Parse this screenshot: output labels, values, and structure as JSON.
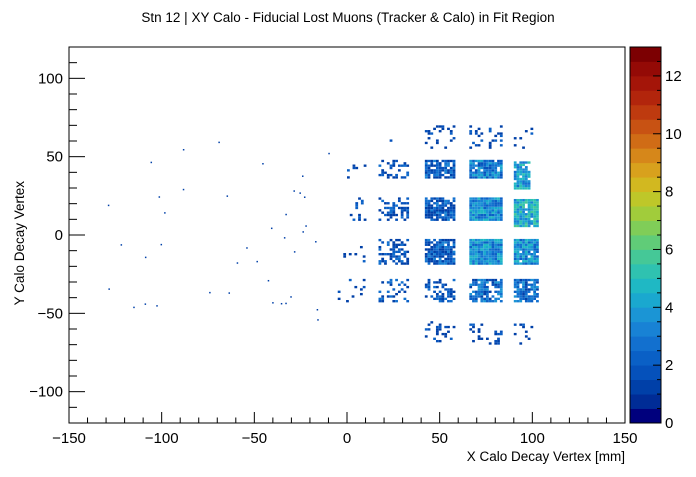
{
  "chart_data": {
    "type": "heatmap",
    "title": "Stn 12 | XY Calo - Fiducial Lost Muons (Tracker & Calo) in Fit Region",
    "xlabel": "X Calo Decay Vertex [mm]",
    "ylabel": "Y Calo Decay Vertex",
    "xlim": [
      -150,
      150
    ],
    "ylim": [
      -120,
      120
    ],
    "xticks": [
      -150,
      -100,
      -50,
      0,
      50,
      100,
      150
    ],
    "yticks": [
      -100,
      -50,
      0,
      50,
      100
    ],
    "colorbar": {
      "zlim": [
        0,
        13
      ],
      "ticks": [
        0,
        2,
        4,
        6,
        8,
        10,
        12
      ],
      "palette": [
        "#00007d",
        "#002c96",
        "#0040a8",
        "#0551bb",
        "#0a60c6",
        "#1270cf",
        "#1882d5",
        "#1b95d5",
        "#1aa8cf",
        "#1fb8c4",
        "#2fc2b0",
        "#45c897",
        "#60cc78",
        "#80cd58",
        "#a1cc3b",
        "#bec729",
        "#d2b820",
        "#d8a11d",
        "#d6871a",
        "#d06c16",
        "#c85213",
        "#be3a0f",
        "#b2250c",
        "#a41509",
        "#940a06",
        "#7c0002"
      ]
    },
    "cells": [
      {
        "x": [
          17,
          33
        ],
        "y": [
          36,
          48
        ],
        "density": 0.35,
        "level": 1.5
      },
      {
        "x": [
          42,
          58
        ],
        "y": [
          36,
          48
        ],
        "density": 0.8,
        "level": 2.0
      },
      {
        "x": [
          66,
          83
        ],
        "y": [
          36,
          48
        ],
        "density": 0.95,
        "level": 3.0
      },
      {
        "x": [
          90,
          98
        ],
        "y": [
          29,
          47
        ],
        "density": 0.9,
        "level": 4.0
      },
      {
        "x": [
          17,
          33
        ],
        "y": [
          9,
          23
        ],
        "density": 0.45,
        "level": 1.5
      },
      {
        "x": [
          42,
          58
        ],
        "y": [
          9,
          23
        ],
        "density": 0.85,
        "level": 2.0
      },
      {
        "x": [
          66,
          83
        ],
        "y": [
          9,
          23
        ],
        "density": 1.0,
        "level": 3.5
      },
      {
        "x": [
          90,
          103
        ],
        "y": [
          5,
          23
        ],
        "density": 0.95,
        "level": 4.5
      },
      {
        "x": [
          17,
          33
        ],
        "y": [
          -19,
          -3
        ],
        "density": 0.4,
        "level": 1.5
      },
      {
        "x": [
          42,
          58
        ],
        "y": [
          -19,
          -3
        ],
        "density": 0.85,
        "level": 2.0
      },
      {
        "x": [
          66,
          83
        ],
        "y": [
          -19,
          -3
        ],
        "density": 1.0,
        "level": 3.5
      },
      {
        "x": [
          90,
          103
        ],
        "y": [
          -19,
          -3
        ],
        "density": 0.95,
        "level": 3.5
      },
      {
        "x": [
          17,
          33
        ],
        "y": [
          -43,
          -29
        ],
        "density": 0.25,
        "level": 1.5
      },
      {
        "x": [
          42,
          58
        ],
        "y": [
          -43,
          -29
        ],
        "density": 0.45,
        "level": 1.5
      },
      {
        "x": [
          66,
          83
        ],
        "y": [
          -43,
          -29
        ],
        "density": 0.8,
        "level": 2.5
      },
      {
        "x": [
          90,
          103
        ],
        "y": [
          -43,
          -29
        ],
        "density": 0.75,
        "level": 2.5
      },
      {
        "x": [
          0,
          10
        ],
        "y": [
          36,
          48
        ],
        "density": 0.1,
        "level": 1.0
      },
      {
        "x": [
          0,
          10
        ],
        "y": [
          9,
          23
        ],
        "density": 0.1,
        "level": 1.0
      },
      {
        "x": [
          -5,
          10
        ],
        "y": [
          -19,
          -3
        ],
        "density": 0.12,
        "level": 1.0
      },
      {
        "x": [
          -5,
          10
        ],
        "y": [
          -43,
          -29
        ],
        "density": 0.08,
        "level": 1.0
      },
      {
        "x": [
          17,
          33
        ],
        "y": [
          55,
          70
        ],
        "density": 0.04,
        "level": 1.0
      },
      {
        "x": [
          42,
          58
        ],
        "y": [
          55,
          70
        ],
        "density": 0.18,
        "level": 1.0
      },
      {
        "x": [
          66,
          83
        ],
        "y": [
          55,
          70
        ],
        "density": 0.22,
        "level": 1.0
      },
      {
        "x": [
          90,
          100
        ],
        "y": [
          55,
          70
        ],
        "density": 0.08,
        "level": 1.0
      },
      {
        "x": [
          42,
          58
        ],
        "y": [
          -70,
          -55
        ],
        "density": 0.15,
        "level": 1.0
      },
      {
        "x": [
          66,
          83
        ],
        "y": [
          -70,
          -55
        ],
        "density": 0.2,
        "level": 1.0
      },
      {
        "x": [
          90,
          100
        ],
        "y": [
          -70,
          -55
        ],
        "density": 0.08,
        "level": 1.0
      }
    ]
  }
}
